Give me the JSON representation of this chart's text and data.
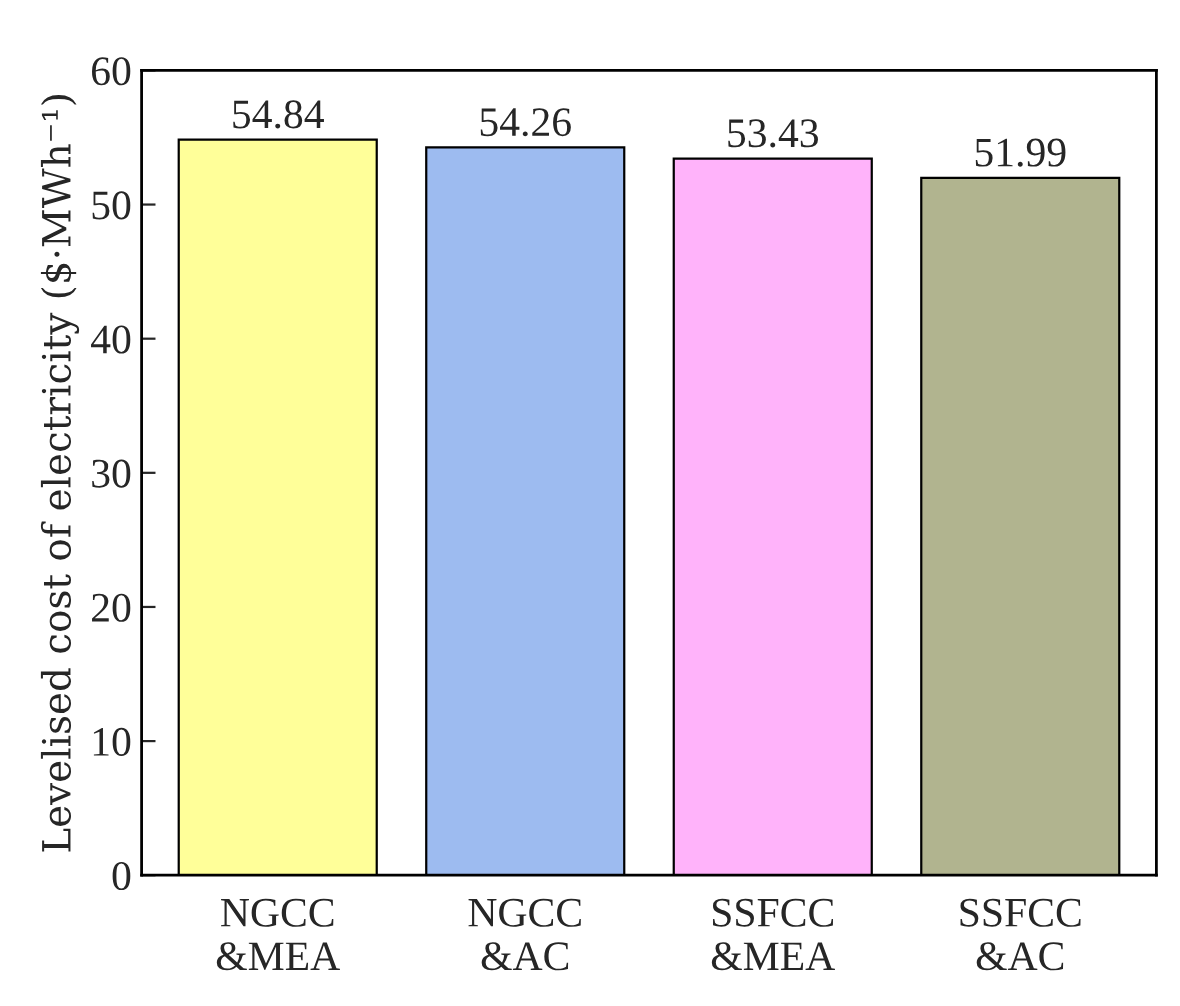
{
  "chart_data": {
    "type": "bar",
    "ylabel": "Levelised cost of electricity ($·MWh⁻¹)",
    "categories": [
      "NGCC\n&MEA",
      "NGCC\n&AC",
      "SSFCC\n&MEA",
      "SSFCC\n&AC"
    ],
    "values": [
      54.84,
      54.26,
      53.43,
      51.99
    ],
    "colors": [
      "#ffff99",
      "#9dbbf0",
      "#ffb3fa",
      "#b1b48f"
    ],
    "data_labels": true,
    "ylim": [
      0,
      60
    ],
    "yticks": [
      0,
      10,
      20,
      30,
      40,
      50,
      60
    ],
    "grid": false,
    "legend": false
  }
}
